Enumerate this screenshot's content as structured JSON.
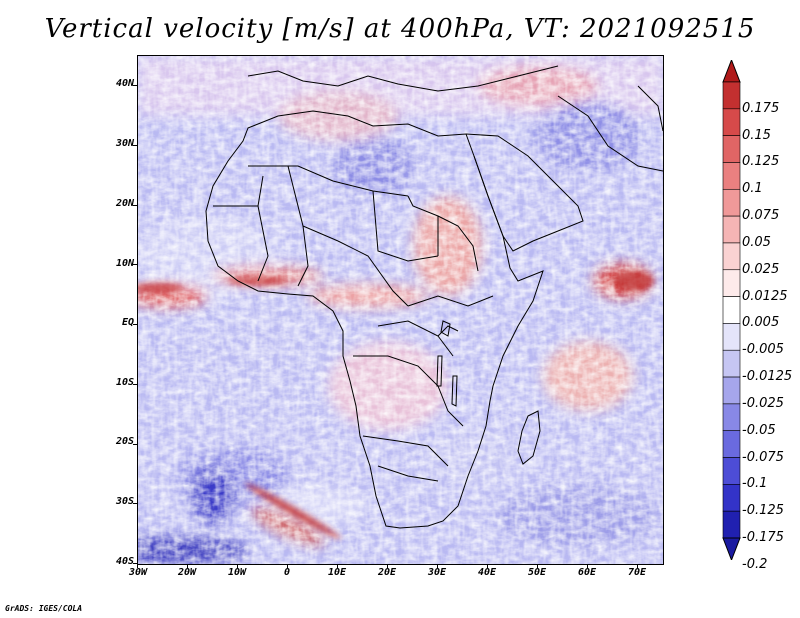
{
  "title": "Vertical velocity [m/s] at 400hPa, VT: 2021092515",
  "credit": "GrADS: IGES/COLA",
  "map": {
    "y_axis_labels": [
      "40N",
      "30N",
      "20N",
      "10N",
      "EQ",
      "10S",
      "20S",
      "30S",
      "40S"
    ],
    "x_axis_labels": [
      "30W",
      "20W",
      "10W",
      "0",
      "10E",
      "20E",
      "30E",
      "40E",
      "50E",
      "60E",
      "70E"
    ],
    "region": "Africa",
    "variable": "vertical velocity",
    "level": "400hPa",
    "valid_time": "2021092515"
  },
  "colorbar": {
    "labels": [
      "0.175",
      "0.15",
      "0.125",
      "0.1",
      "0.075",
      "0.05",
      "0.025",
      "0.0125",
      "0.005",
      "-0.005",
      "-0.0125",
      "-0.025",
      "-0.05",
      "-0.075",
      "-0.1",
      "-0.125",
      "-0.175",
      "-0.2"
    ],
    "colors": [
      "#b01a1a",
      "#c33030",
      "#d64a4a",
      "#e06565",
      "#ea8080",
      "#f09999",
      "#f5b5b5",
      "#fad2d2",
      "#fdeaea",
      "#ffffff",
      "#e4e4fa",
      "#c6c6f3",
      "#a6a6ec",
      "#8888e6",
      "#6a6adf",
      "#4d4dd6",
      "#3333c8",
      "#2020b0",
      "#1a1aa0"
    ]
  }
}
